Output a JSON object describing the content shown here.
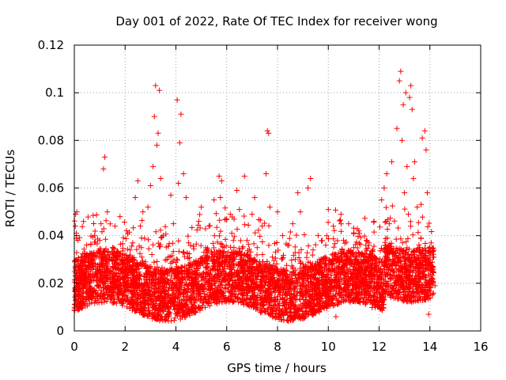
{
  "chart_data": {
    "type": "scatter",
    "title": "Day 001 of 2022, Rate Of TEC Index for receiver wong",
    "xlabel": "GPS time / hours",
    "ylabel": "ROTI / TECUs",
    "xlim": [
      0,
      16
    ],
    "ylim": [
      0,
      0.12
    ],
    "xticks": [
      0,
      2,
      4,
      6,
      8,
      10,
      12,
      14,
      16
    ],
    "yticks": [
      0,
      0.02,
      0.04,
      0.06,
      0.08,
      0.1,
      0.12
    ],
    "xtick_labels": [
      "0",
      "2",
      "4",
      "6",
      "8",
      "10",
      "12",
      "14",
      "16"
    ],
    "ytick_labels": [
      "0",
      "0.02",
      "0.04",
      "0.06",
      "0.08",
      "0.1",
      "0.12"
    ],
    "grid": true,
    "marker": "+",
    "color": "#ff0000",
    "series": [
      {
        "name": "ROTI",
        "x": [
          0.02,
          0.05,
          0.08,
          0.1,
          0.12,
          0.15,
          0.2,
          0.25,
          0.3,
          0.35,
          0.4,
          0.5,
          0.6,
          0.7,
          0.8,
          0.9,
          1.0,
          1.05,
          1.1,
          1.15,
          1.2,
          1.3,
          1.4,
          1.5,
          1.6,
          1.7,
          1.8,
          1.9,
          2.0,
          2.1,
          2.2,
          2.3,
          2.4,
          2.5,
          2.6,
          2.7,
          2.8,
          2.9,
          3.0,
          3.1,
          3.15,
          3.2,
          3.25,
          3.3,
          3.35,
          3.4,
          3.5,
          3.6,
          3.7,
          3.8,
          3.9,
          4.0,
          4.05,
          4.1,
          4.15,
          4.2,
          4.3,
          4.4,
          4.5,
          4.6,
          4.7,
          4.8,
          4.9,
          5.0,
          5.1,
          5.2,
          5.3,
          5.4,
          5.5,
          5.6,
          5.7,
          5.75,
          5.8,
          5.9,
          6.0,
          6.1,
          6.2,
          6.3,
          6.4,
          6.5,
          6.6,
          6.7,
          6.8,
          6.9,
          7.0,
          7.1,
          7.2,
          7.3,
          7.4,
          7.5,
          7.55,
          7.6,
          7.65,
          7.7,
          7.8,
          7.9,
          8.0,
          8.1,
          8.2,
          8.3,
          8.4,
          8.5,
          8.6,
          8.7,
          8.8,
          8.9,
          9.0,
          9.1,
          9.2,
          9.3,
          9.4,
          9.5,
          9.6,
          9.7,
          9.8,
          9.9,
          10.0,
          10.1,
          10.2,
          10.3,
          10.4,
          10.5,
          10.6,
          10.7,
          10.8,
          10.9,
          11.0,
          11.1,
          11.2,
          11.3,
          11.4,
          11.5,
          11.6,
          11.7,
          11.8,
          11.9,
          12.0,
          12.1,
          12.2,
          12.3,
          12.4,
          12.5,
          12.6,
          12.7,
          12.8,
          12.85,
          12.9,
          12.95,
          13.0,
          13.05,
          13.1,
          13.15,
          13.2,
          13.25,
          13.3,
          13.35,
          13.4,
          13.5,
          13.6,
          13.7,
          13.8,
          13.85,
          13.9,
          13.95,
          14.0,
          14.05,
          14.1,
          14.15,
          14.2
        ],
        "values": [
          0.018,
          0.049,
          0.041,
          0.05,
          0.022,
          0.03,
          0.015,
          0.026,
          0.031,
          0.012,
          0.024,
          0.02,
          0.017,
          0.028,
          0.04,
          0.021,
          0.038,
          0.045,
          0.025,
          0.068,
          0.073,
          0.05,
          0.032,
          0.019,
          0.044,
          0.016,
          0.048,
          0.022,
          0.027,
          0.014,
          0.034,
          0.021,
          0.056,
          0.063,
          0.044,
          0.05,
          0.029,
          0.052,
          0.061,
          0.069,
          0.09,
          0.103,
          0.078,
          0.083,
          0.101,
          0.064,
          0.04,
          0.022,
          0.031,
          0.057,
          0.045,
          0.02,
          0.097,
          0.062,
          0.079,
          0.091,
          0.066,
          0.056,
          0.037,
          0.024,
          0.029,
          0.018,
          0.046,
          0.052,
          0.033,
          0.021,
          0.044,
          0.019,
          0.055,
          0.03,
          0.065,
          0.056,
          0.063,
          0.022,
          0.047,
          0.027,
          0.041,
          0.032,
          0.059,
          0.051,
          0.016,
          0.065,
          0.038,
          0.022,
          0.049,
          0.056,
          0.035,
          0.018,
          0.044,
          0.028,
          0.066,
          0.084,
          0.083,
          0.052,
          0.031,
          0.027,
          0.05,
          0.019,
          0.04,
          0.024,
          0.036,
          0.021,
          0.045,
          0.03,
          0.058,
          0.05,
          0.028,
          0.016,
          0.06,
          0.064,
          0.034,
          0.022,
          0.04,
          0.027,
          0.018,
          0.036,
          0.051,
          0.025,
          0.044,
          0.006,
          0.03,
          0.049,
          0.038,
          0.021,
          0.045,
          0.016,
          0.035,
          0.026,
          0.042,
          0.019,
          0.031,
          0.023,
          0.037,
          0.022,
          0.046,
          0.03,
          0.018,
          0.055,
          0.06,
          0.066,
          0.045,
          0.071,
          0.028,
          0.085,
          0.105,
          0.109,
          0.08,
          0.095,
          0.058,
          0.1,
          0.069,
          0.049,
          0.098,
          0.103,
          0.093,
          0.064,
          0.071,
          0.052,
          0.035,
          0.081,
          0.084,
          0.076,
          0.058,
          0.007,
          0.028,
          0.037,
          0.022,
          0.031,
          0.019
        ]
      }
    ]
  }
}
